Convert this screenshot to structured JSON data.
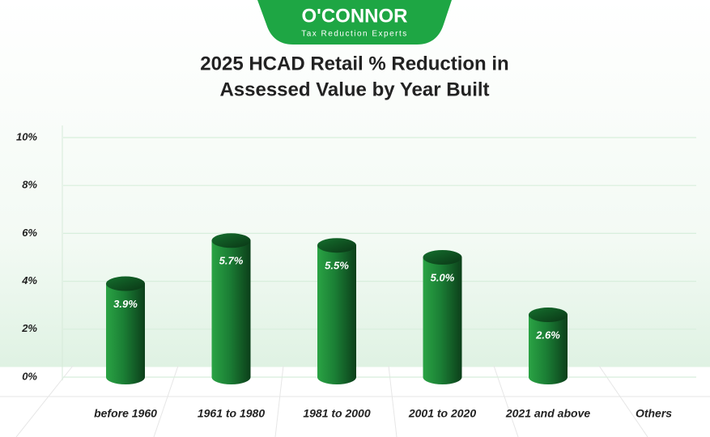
{
  "logo": {
    "name": "O'CONNOR",
    "tagline": "Tax Reduction Experts"
  },
  "chart_data": {
    "type": "bar",
    "title": [
      "2025 HCAD Retail % Reduction in",
      "Assessed Value by Year Built"
    ],
    "categories": [
      "before 1960",
      "1961 to 1980",
      "1981 to 2000",
      "2001 to 2020",
      "2021 and above",
      "Others"
    ],
    "values": [
      3.9,
      5.7,
      5.5,
      5.0,
      2.6,
      null
    ],
    "value_labels": [
      "3.9%",
      "5.7%",
      "5.5%",
      "5.0%",
      "2.6%",
      null
    ],
    "color": "#1e8b3a",
    "ylim": [
      0,
      10
    ],
    "yticks": [
      {
        "value": 0,
        "label": "0%"
      },
      {
        "value": 2,
        "label": "2%"
      },
      {
        "value": 4,
        "label": "4%"
      },
      {
        "value": 6,
        "label": "6%"
      },
      {
        "value": 8,
        "label": "8%"
      },
      {
        "value": 10,
        "label": "10%"
      }
    ],
    "grid": true
  }
}
